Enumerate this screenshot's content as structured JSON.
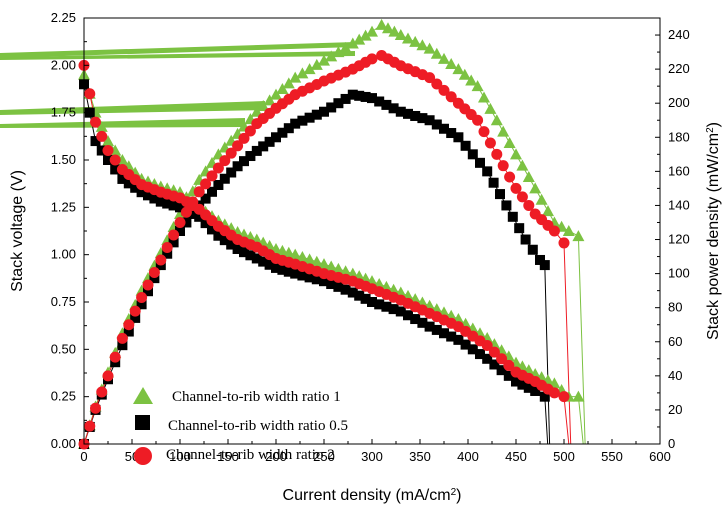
{
  "chart_data": {
    "type": "scatter",
    "xlabel": "Current density (mA/cm",
    "xlabel_sup": "2",
    "xlabel_end": ")",
    "ylabel_left": "Stack voltage (V)",
    "ylabel_right": "Stack power density (mW/cm",
    "ylabel_right_sup": "2",
    "ylabel_right_end": ")",
    "xlim": [
      0,
      600
    ],
    "ylim_left": [
      0,
      2.25
    ],
    "ylim_right": [
      0,
      250
    ],
    "x_ticks": [
      0,
      50,
      100,
      150,
      200,
      250,
      300,
      350,
      400,
      450,
      500,
      550,
      600
    ],
    "y_left_ticks": [
      "0.00",
      "0.25",
      "0.50",
      "0.75",
      "1.00",
      "1.25",
      "1.50",
      "1.75",
      "2.00",
      "2.25"
    ],
    "y_right_ticks": [
      0,
      20,
      40,
      60,
      80,
      100,
      120,
      140,
      160,
      180,
      200,
      220,
      240
    ],
    "grid": false,
    "legend_position": "bottom-left",
    "series": [
      {
        "name": "Channel-to-rib width ratio 1",
        "color": "#7cc242",
        "marker": "triangle",
        "voltage": [
          [
            0,
            1.95
          ],
          [
            12,
            1.75
          ],
          [
            25,
            1.6
          ],
          [
            40,
            1.5
          ],
          [
            60,
            1.4
          ],
          [
            80,
            1.36
          ],
          [
            100,
            1.33
          ],
          [
            120,
            1.25
          ],
          [
            140,
            1.18
          ],
          [
            160,
            1.12
          ],
          [
            180,
            1.08
          ],
          [
            200,
            1.03
          ],
          [
            220,
            1.0
          ],
          [
            250,
            0.95
          ],
          [
            280,
            0.9
          ],
          [
            300,
            0.86
          ],
          [
            330,
            0.8
          ],
          [
            360,
            0.73
          ],
          [
            390,
            0.66
          ],
          [
            420,
            0.56
          ],
          [
            450,
            0.43
          ],
          [
            470,
            0.37
          ],
          [
            490,
            0.32
          ],
          [
            505,
            0.25
          ],
          [
            515,
            0.25
          ],
          [
            520,
            0.0
          ]
        ],
        "power": [
          [
            0,
            0
          ],
          [
            12,
            22
          ],
          [
            25,
            42
          ],
          [
            40,
            65
          ],
          [
            60,
            90
          ],
          [
            80,
            112
          ],
          [
            100,
            135
          ],
          [
            120,
            155
          ],
          [
            140,
            170
          ],
          [
            160,
            182
          ],
          [
            180,
            195
          ],
          [
            200,
            205
          ],
          [
            220,
            215
          ],
          [
            250,
            225
          ],
          [
            280,
            235
          ],
          [
            300,
            242
          ],
          [
            310,
            246
          ],
          [
            330,
            240
          ],
          [
            360,
            232
          ],
          [
            390,
            220
          ],
          [
            410,
            210
          ],
          [
            430,
            190
          ],
          [
            450,
            170
          ],
          [
            470,
            150
          ],
          [
            490,
            130
          ],
          [
            505,
            125
          ],
          [
            515,
            122
          ],
          [
            522,
            0
          ]
        ]
      },
      {
        "name": "Channel-to-rib width ratio 0.5",
        "color": "#000000",
        "marker": "square",
        "voltage": [
          [
            0,
            1.9
          ],
          [
            12,
            1.6
          ],
          [
            25,
            1.5
          ],
          [
            40,
            1.4
          ],
          [
            60,
            1.33
          ],
          [
            80,
            1.28
          ],
          [
            100,
            1.25
          ],
          [
            120,
            1.2
          ],
          [
            140,
            1.1
          ],
          [
            160,
            1.03
          ],
          [
            180,
            0.98
          ],
          [
            200,
            0.93
          ],
          [
            220,
            0.9
          ],
          [
            250,
            0.86
          ],
          [
            280,
            0.8
          ],
          [
            300,
            0.75
          ],
          [
            330,
            0.7
          ],
          [
            360,
            0.62
          ],
          [
            390,
            0.55
          ],
          [
            420,
            0.45
          ],
          [
            450,
            0.33
          ],
          [
            470,
            0.28
          ],
          [
            480,
            0.25
          ],
          [
            483,
            0.0
          ]
        ],
        "power": [
          [
            0,
            0
          ],
          [
            12,
            20
          ],
          [
            25,
            38
          ],
          [
            40,
            58
          ],
          [
            60,
            82
          ],
          [
            80,
            105
          ],
          [
            100,
            125
          ],
          [
            120,
            140
          ],
          [
            140,
            152
          ],
          [
            160,
            163
          ],
          [
            180,
            172
          ],
          [
            200,
            180
          ],
          [
            220,
            188
          ],
          [
            250,
            195
          ],
          [
            280,
            205
          ],
          [
            300,
            203
          ],
          [
            330,
            195
          ],
          [
            360,
            190
          ],
          [
            390,
            180
          ],
          [
            420,
            160
          ],
          [
            440,
            140
          ],
          [
            460,
            120
          ],
          [
            475,
            108
          ],
          [
            480,
            105
          ],
          [
            485,
            0
          ]
        ]
      },
      {
        "name": "Channel-to-rib width ratio 2",
        "color": "#ee1c25",
        "marker": "circle",
        "voltage": [
          [
            0,
            2.0
          ],
          [
            12,
            1.7
          ],
          [
            25,
            1.55
          ],
          [
            40,
            1.45
          ],
          [
            60,
            1.37
          ],
          [
            80,
            1.33
          ],
          [
            100,
            1.3
          ],
          [
            120,
            1.24
          ],
          [
            140,
            1.15
          ],
          [
            160,
            1.08
          ],
          [
            180,
            1.04
          ],
          [
            200,
            0.98
          ],
          [
            220,
            0.95
          ],
          [
            250,
            0.9
          ],
          [
            280,
            0.86
          ],
          [
            300,
            0.82
          ],
          [
            330,
            0.76
          ],
          [
            360,
            0.69
          ],
          [
            390,
            0.62
          ],
          [
            420,
            0.52
          ],
          [
            450,
            0.38
          ],
          [
            470,
            0.33
          ],
          [
            490,
            0.27
          ],
          [
            500,
            0.25
          ],
          [
            505,
            0.0
          ]
        ],
        "power": [
          [
            0,
            0
          ],
          [
            12,
            21
          ],
          [
            25,
            40
          ],
          [
            40,
            62
          ],
          [
            60,
            86
          ],
          [
            80,
            108
          ],
          [
            100,
            130
          ],
          [
            120,
            148
          ],
          [
            140,
            162
          ],
          [
            160,
            175
          ],
          [
            180,
            188
          ],
          [
            200,
            197
          ],
          [
            220,
            205
          ],
          [
            250,
            213
          ],
          [
            280,
            220
          ],
          [
            300,
            226
          ],
          [
            310,
            228
          ],
          [
            330,
            222
          ],
          [
            360,
            215
          ],
          [
            390,
            200
          ],
          [
            410,
            190
          ],
          [
            430,
            170
          ],
          [
            450,
            150
          ],
          [
            470,
            135
          ],
          [
            490,
            125
          ],
          [
            500,
            118
          ],
          [
            507,
            0
          ]
        ]
      }
    ]
  }
}
